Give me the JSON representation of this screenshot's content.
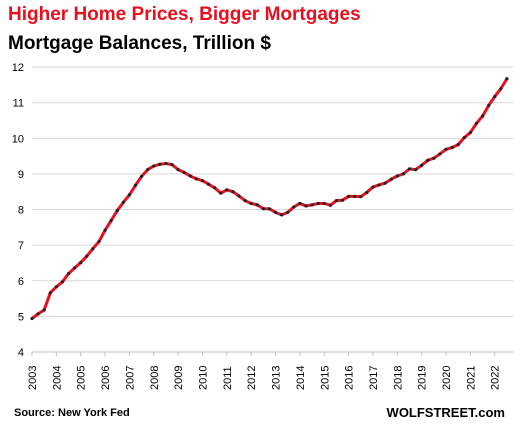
{
  "chart_data": {
    "type": "line",
    "title": "Higher Home Prices, Bigger Mortgages",
    "subtitle": "Mortgage Balances, Trillion $",
    "ylim": [
      4,
      12
    ],
    "yticks": [
      4,
      5,
      6,
      7,
      8,
      9,
      10,
      11,
      12
    ],
    "xlim": [
      2003,
      2022.75
    ],
    "xticks": [
      "2003",
      "2004",
      "2005",
      "2006",
      "2007",
      "2008",
      "2009",
      "2010",
      "2011",
      "2012",
      "2013",
      "2014",
      "2015",
      "2016",
      "2017",
      "2018",
      "2019",
      "2020",
      "2021",
      "2022"
    ],
    "grid": "horizontal",
    "line_color": "#e8101f",
    "marker_color": "#222222",
    "series": [
      {
        "x": [
          2003.0,
          2003.25,
          2003.5,
          2003.75,
          2004.0,
          2004.25,
          2004.5,
          2004.75,
          2005.0,
          2005.25,
          2005.5,
          2005.75,
          2006.0,
          2006.25,
          2006.5,
          2006.75,
          2007.0,
          2007.25,
          2007.5,
          2007.75,
          2008.0,
          2008.25,
          2008.5,
          2008.75,
          2009.0,
          2009.25,
          2009.5,
          2009.75,
          2010.0,
          2010.25,
          2010.5,
          2010.75,
          2011.0,
          2011.25,
          2011.5,
          2011.75,
          2012.0,
          2012.25,
          2012.5,
          2012.75,
          2013.0,
          2013.25,
          2013.5,
          2013.75,
          2014.0,
          2014.25,
          2014.5,
          2014.75,
          2015.0,
          2015.25,
          2015.5,
          2015.75,
          2016.0,
          2016.25,
          2016.5,
          2016.75,
          2017.0,
          2017.25,
          2017.5,
          2017.75,
          2018.0,
          2018.25,
          2018.5,
          2018.75,
          2019.0,
          2019.25,
          2019.5,
          2019.75,
          2020.0,
          2020.25,
          2020.5,
          2020.75,
          2021.0,
          2021.25,
          2021.5,
          2021.75,
          2022.0,
          2022.25,
          2022.5
        ],
        "values": [
          4.94,
          5.07,
          5.18,
          5.66,
          5.83,
          5.97,
          6.2,
          6.36,
          6.51,
          6.69,
          6.9,
          7.1,
          7.42,
          7.69,
          7.97,
          8.2,
          8.41,
          8.68,
          8.93,
          9.12,
          9.22,
          9.27,
          9.29,
          9.26,
          9.12,
          9.04,
          8.94,
          8.86,
          8.81,
          8.71,
          8.61,
          8.46,
          8.55,
          8.5,
          8.38,
          8.25,
          8.17,
          8.13,
          8.02,
          8.02,
          7.92,
          7.85,
          7.92,
          8.07,
          8.17,
          8.1,
          8.13,
          8.17,
          8.17,
          8.12,
          8.25,
          8.26,
          8.37,
          8.37,
          8.36,
          8.48,
          8.63,
          8.69,
          8.74,
          8.85,
          8.94,
          9.0,
          9.14,
          9.12,
          9.24,
          9.38,
          9.44,
          9.56,
          9.69,
          9.74,
          9.82,
          10.02,
          10.16,
          10.42,
          10.62,
          10.92,
          11.17,
          11.39,
          11.67
        ]
      }
    ],
    "source": "Source: New York Fed",
    "brand": "WOLFSTREET.com"
  }
}
